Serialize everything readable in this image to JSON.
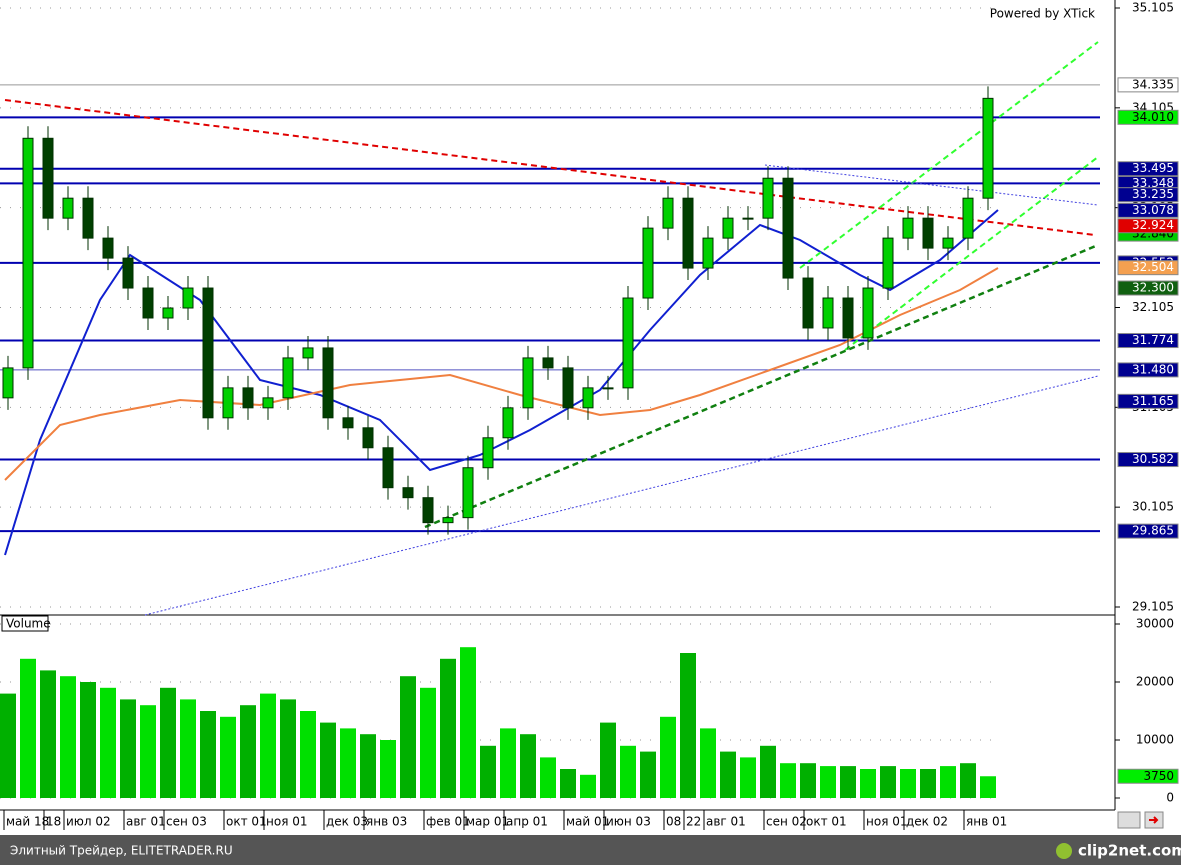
{
  "header": {
    "watermark": "Powered by XTick"
  },
  "chart_data": {
    "type": "candlestick",
    "ylim": [
      29.105,
      35.105
    ],
    "yticks": [
      29.105,
      30.105,
      31.105,
      32.105,
      33.105,
      34.105,
      35.105
    ],
    "grid": true,
    "up_color": "#00d000",
    "down_color": "#004000",
    "categories": [
      "май 18",
      null,
      "18",
      "июл 02",
      null,
      null,
      "авг 01",
      null,
      "сен 03",
      null,
      null,
      "окт 01",
      null,
      "ноя 01",
      null,
      null,
      "дек 03",
      null,
      "янв 03",
      null,
      null,
      "фев 01",
      null,
      "мар 01",
      null,
      "апр 01",
      null,
      null,
      "май 01",
      null,
      "июн 03",
      null,
      null,
      "08",
      "22",
      "авг 01",
      null,
      null,
      "сен 02",
      null,
      "окт 01",
      null,
      null,
      "ноя 01",
      null,
      "дек 02",
      null,
      null,
      "янв 01",
      null
    ],
    "open": [
      31.2,
      31.5,
      33.8,
      33.0,
      33.2,
      32.8,
      32.6,
      32.3,
      32.0,
      32.1,
      32.3,
      31.0,
      31.3,
      31.1,
      31.2,
      31.6,
      31.7,
      31.0,
      30.9,
      30.7,
      30.3,
      30.2,
      29.95,
      30.0,
      30.5,
      30.8,
      31.1,
      31.6,
      31.5,
      31.1,
      31.3,
      31.3,
      32.2,
      32.9,
      33.2,
      32.5,
      32.8,
      33.0,
      33.0,
      33.4,
      32.4,
      31.9,
      32.2,
      31.8,
      32.3,
      32.8,
      33.0,
      32.7,
      32.8,
      33.2
    ],
    "high": [
      31.62,
      33.92,
      33.92,
      33.32,
      33.32,
      32.92,
      32.72,
      32.42,
      32.22,
      32.42,
      32.42,
      31.42,
      31.42,
      31.32,
      31.72,
      31.82,
      31.82,
      31.12,
      31.02,
      30.82,
      30.42,
      30.32,
      30.12,
      30.62,
      30.92,
      31.22,
      31.72,
      31.72,
      31.62,
      31.42,
      31.42,
      32.32,
      33.02,
      33.32,
      33.32,
      32.92,
      33.12,
      33.12,
      33.52,
      33.52,
      32.52,
      32.32,
      32.32,
      32.42,
      32.92,
      33.12,
      33.12,
      32.92,
      33.32,
      34.32
    ],
    "low": [
      31.08,
      31.38,
      32.88,
      32.88,
      32.68,
      32.48,
      32.18,
      31.88,
      31.88,
      31.98,
      30.88,
      30.88,
      30.98,
      30.98,
      31.08,
      31.48,
      30.88,
      30.78,
      30.58,
      30.18,
      30.08,
      29.83,
      29.83,
      29.88,
      30.38,
      30.68,
      30.98,
      31.38,
      30.98,
      30.98,
      31.18,
      31.18,
      32.08,
      32.78,
      32.38,
      32.38,
      32.68,
      32.88,
      32.88,
      32.28,
      31.78,
      31.78,
      31.68,
      31.68,
      32.18,
      32.68,
      32.58,
      32.58,
      32.68,
      33.08
    ],
    "close": [
      31.5,
      33.8,
      33.0,
      33.2,
      32.8,
      32.6,
      32.3,
      32.0,
      32.1,
      32.3,
      31.0,
      31.3,
      31.1,
      31.2,
      31.6,
      31.7,
      31.0,
      30.9,
      30.7,
      30.3,
      30.2,
      29.95,
      30.0,
      30.5,
      30.8,
      31.1,
      31.6,
      31.5,
      31.1,
      31.3,
      31.3,
      32.2,
      32.9,
      33.2,
      32.5,
      32.8,
      33.0,
      33.0,
      33.4,
      32.4,
      31.9,
      32.2,
      31.8,
      32.3,
      32.8,
      33.0,
      32.7,
      32.8,
      33.2,
      34.2
    ],
    "levels": [
      {
        "value": 34.335,
        "label": "34.335",
        "color": "#ffffff",
        "text_color": "#000000",
        "line": "#999999"
      },
      {
        "value": 34.01,
        "label": "34.010",
        "color": "#00ee00",
        "text_color": "#000000",
        "line": "#0000b0"
      },
      {
        "value": 33.495,
        "label": "33.495",
        "color": "#000090",
        "text_color": "#ffffff",
        "line": "#0000b0"
      },
      {
        "value": 33.348,
        "label": "33.348",
        "color": "#000090",
        "text_color": "#ffffff",
        "line": "#0000b0"
      },
      {
        "value": 33.235,
        "label": "33.235",
        "color": "#000090",
        "text_color": "#ffffff",
        "line": null
      },
      {
        "value": 33.078,
        "label": "33.078",
        "color": "#000090",
        "text_color": "#ffffff",
        "line": null
      },
      {
        "value": 32.84,
        "label": "32.840",
        "color": "#00cc00",
        "text_color": "#000000",
        "line": null
      },
      {
        "value": 32.924,
        "label": "32.924",
        "color": "#e00000",
        "text_color": "#ffffff",
        "line": null
      },
      {
        "value": 32.552,
        "label": "32.552",
        "color": "#000090",
        "text_color": "#ffffff",
        "line": "#0000b0"
      },
      {
        "value": 32.504,
        "label": "32.504",
        "color": "#f4a050",
        "text_color": "#ffffff",
        "line": null
      },
      {
        "value": 32.3,
        "label": "32.300",
        "color": "#106010",
        "text_color": "#ffffff",
        "line": null
      },
      {
        "value": 31.774,
        "label": "31.774",
        "color": "#000090",
        "text_color": "#ffffff",
        "line": "#0000b0"
      },
      {
        "value": 31.48,
        "label": "31.480",
        "color": "#000090",
        "text_color": "#ffffff",
        "line": "#5050c0"
      },
      {
        "value": 31.165,
        "label": "31.165",
        "color": "#000090",
        "text_color": "#ffffff",
        "line": null
      },
      {
        "value": 30.582,
        "label": "30.582",
        "color": "#000090",
        "text_color": "#ffffff",
        "line": "#0000b0"
      },
      {
        "value": 29.865,
        "label": "29.865",
        "color": "#000090",
        "text_color": "#ffffff",
        "line": "#0000b0"
      }
    ],
    "volume": {
      "name": "Volume",
      "color": "#00e000",
      "values": [
        18000,
        24000,
        22000,
        21000,
        20000,
        19000,
        17000,
        16000,
        19000,
        17000,
        15000,
        14000,
        16000,
        18000,
        17000,
        15000,
        13000,
        12000,
        11000,
        10000,
        21000,
        19000,
        24000,
        26000,
        9000,
        12000,
        11000,
        7000,
        5000,
        4000,
        13000,
        9000,
        8000,
        14000,
        25000,
        12000,
        8000,
        7000,
        9000,
        6000,
        6000,
        5500,
        5500,
        5000,
        5500,
        5000,
        5000,
        5500,
        6000,
        3750
      ],
      "ylim": [
        0,
        30000
      ],
      "yticks": [
        0,
        10000,
        20000,
        30000
      ]
    }
  },
  "footer": {
    "left": "Элитный Трейдер, ELITETRADER.RU",
    "right": "clip2net.com"
  }
}
